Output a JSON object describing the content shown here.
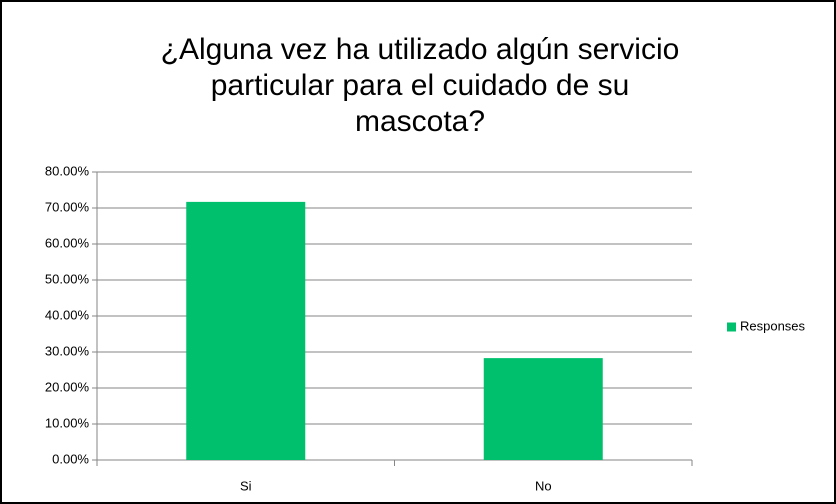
{
  "chart_data": {
    "type": "bar",
    "title": "¿Alguna vez ha utilizado algún servicio\nparticular para el cuidado de su\nmascota?",
    "categories": [
      "Si",
      "No"
    ],
    "series": [
      {
        "name": "Responses",
        "color": "#00c06e",
        "values": [
          71.7,
          28.3
        ]
      }
    ],
    "ylim": [
      0,
      80
    ],
    "yticks": [
      {
        "value": 0,
        "label": "0.00%"
      },
      {
        "value": 10,
        "label": "10.00%"
      },
      {
        "value": 20,
        "label": "20.00%"
      },
      {
        "value": 30,
        "label": "30.00%"
      },
      {
        "value": 40,
        "label": "40.00%"
      },
      {
        "value": 50,
        "label": "50.00%"
      },
      {
        "value": 60,
        "label": "60.00%"
      },
      {
        "value": 70,
        "label": "70.00%"
      },
      {
        "value": 80,
        "label": "80.00%"
      }
    ],
    "grid": true,
    "legend": "right"
  }
}
